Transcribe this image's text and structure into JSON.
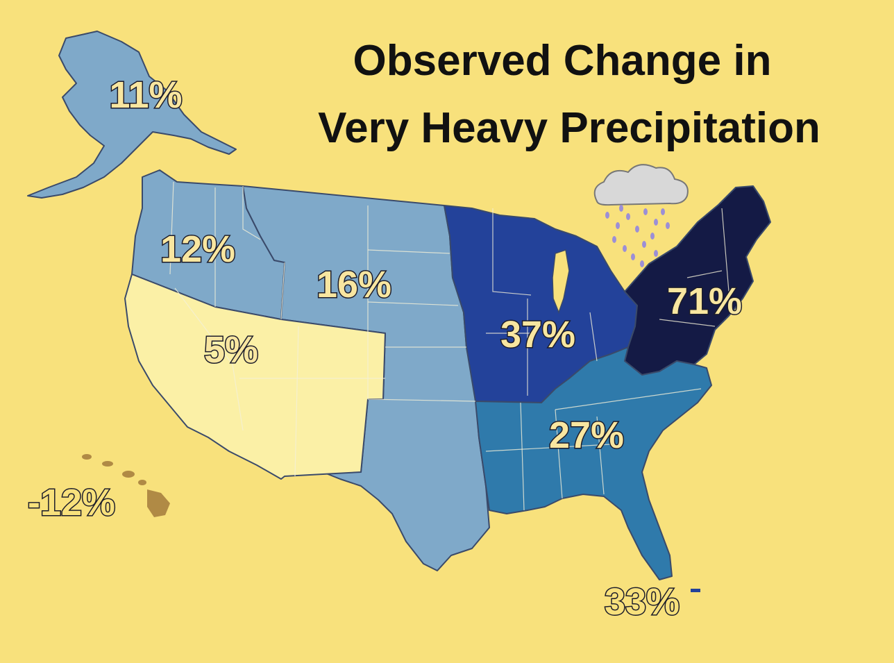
{
  "title": {
    "line1": "Observed Change in",
    "line2": "Very Heavy Precipitation"
  },
  "colors": {
    "background": "#f8e17c",
    "light_blue": "#7fa9c9",
    "mid_blue": "#2f7aab",
    "dark_blue": "#23429a",
    "navy": "#141a45",
    "pale_yellow": "#fbf0a6",
    "hawaii_brown": "#b08a45"
  },
  "regions": [
    {
      "name": "Alaska",
      "label": "11%",
      "value": 11,
      "color": "#7fa9c9"
    },
    {
      "name": "Northwest",
      "label": "12%",
      "value": 12,
      "color": "#7fa9c9"
    },
    {
      "name": "Great Plains",
      "label": "16%",
      "value": 16,
      "color": "#7fa9c9"
    },
    {
      "name": "Southwest",
      "label": "5%",
      "value": 5,
      "color": "#fbf0a6"
    },
    {
      "name": "Midwest",
      "label": "37%",
      "value": 37,
      "color": "#23429a"
    },
    {
      "name": "Northeast",
      "label": "71%",
      "value": 71,
      "color": "#141a45"
    },
    {
      "name": "Southeast",
      "label": "27%",
      "value": 27,
      "color": "#2f7aab"
    },
    {
      "name": "Hawaii",
      "label": "-12%",
      "value": -12,
      "color": "#b08a45"
    },
    {
      "name": "Puerto Rico",
      "label": "33%",
      "value": 33,
      "color": "#23429a"
    }
  ],
  "icons": {
    "rain_cloud": "rain-cloud-icon"
  }
}
